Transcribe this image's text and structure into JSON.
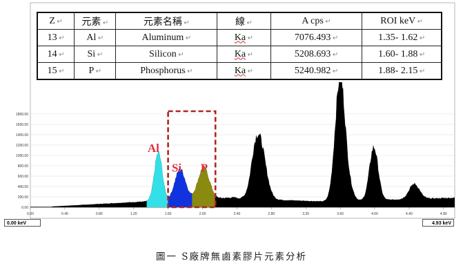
{
  "chart_data": {
    "type": "area",
    "xlabel": "",
    "ylabel": "",
    "xlim": [
      0.0,
      4.93
    ],
    "ylim": [
      0,
      1650
    ],
    "x_ticks": [
      "0.00",
      "0.40",
      "0.80",
      "1.20",
      "1.60",
      "2.00",
      "2.40",
      "2.80",
      "3.20",
      "3.60",
      "4.00",
      "4.40",
      "4.80"
    ],
    "y_ticks": [
      "0.00",
      "200.00",
      "400.00",
      "600.00",
      "800.00",
      "1000.00",
      "1200.00",
      "1400.00",
      "1600.00",
      "1800.00"
    ],
    "peaks": [
      {
        "center": 1.487,
        "height": 940,
        "width": 0.045,
        "roi": "Al"
      },
      {
        "center": 1.74,
        "height": 600,
        "width": 0.062,
        "roi": "Si"
      },
      {
        "center": 2.013,
        "height": 605,
        "width": 0.065,
        "roi": "P"
      },
      {
        "center": 2.66,
        "height": 1130,
        "width": 0.072
      },
      {
        "center": 2.605,
        "height": 230,
        "width": 0.045
      },
      {
        "center": 3.6,
        "height": 2400,
        "width": 0.058
      },
      {
        "center": 3.72,
        "height": 150,
        "width": 0.045
      },
      {
        "center": 3.99,
        "height": 1020,
        "width": 0.05
      },
      {
        "center": 4.46,
        "height": 290,
        "width": 0.06
      }
    ],
    "regions": [
      {
        "element": "Al",
        "from": 1.35,
        "to": 1.62,
        "color": "#33e0e8"
      },
      {
        "element": "Si",
        "from": 1.6,
        "to": 1.88,
        "color": "#1133dd"
      },
      {
        "element": "P",
        "from": 1.88,
        "to": 2.15,
        "color": "#8a8a10"
      }
    ],
    "highlight_box": {
      "from": 1.6,
      "to": 2.15,
      "color": "#b22222"
    },
    "labels": [
      {
        "text": "Al",
        "x": 1.43,
        "y": 1070,
        "color": "#e03040"
      },
      {
        "text": "Si",
        "x": 1.7,
        "y": 690,
        "color": "#e03040"
      },
      {
        "text": "P",
        "x": 2.02,
        "y": 690,
        "color": "#e03040"
      }
    ],
    "colors": {
      "spectrum": "#000000",
      "Al": "#33e0e8",
      "Si": "#1133dd",
      "P": "#8a8a10",
      "box": "#b22222"
    },
    "grid": true
  },
  "status": {
    "left": "0.00 keV",
    "right": "4.93 keV"
  },
  "table": {
    "headers": [
      "Z",
      "元素",
      "元素名稱",
      "線",
      "A cps",
      "ROI keV"
    ],
    "rows": [
      {
        "z": "13",
        "symbol": "Al",
        "name": "Aluminum",
        "line": "Ka",
        "cps": "7076.493",
        "roi": "1.35- 1.62"
      },
      {
        "z": "14",
        "symbol": "Si",
        "name": "Silicon",
        "line": "Ka",
        "cps": "5208.693",
        "roi": "1.60- 1.88"
      },
      {
        "z": "15",
        "symbol": "P",
        "name": "Phosphorus",
        "line": "Ka",
        "cps": "5240.982",
        "roi": "1.88- 2.15"
      }
    ]
  },
  "caption": "圖一 S廠牌無鹵素膠片元素分析"
}
